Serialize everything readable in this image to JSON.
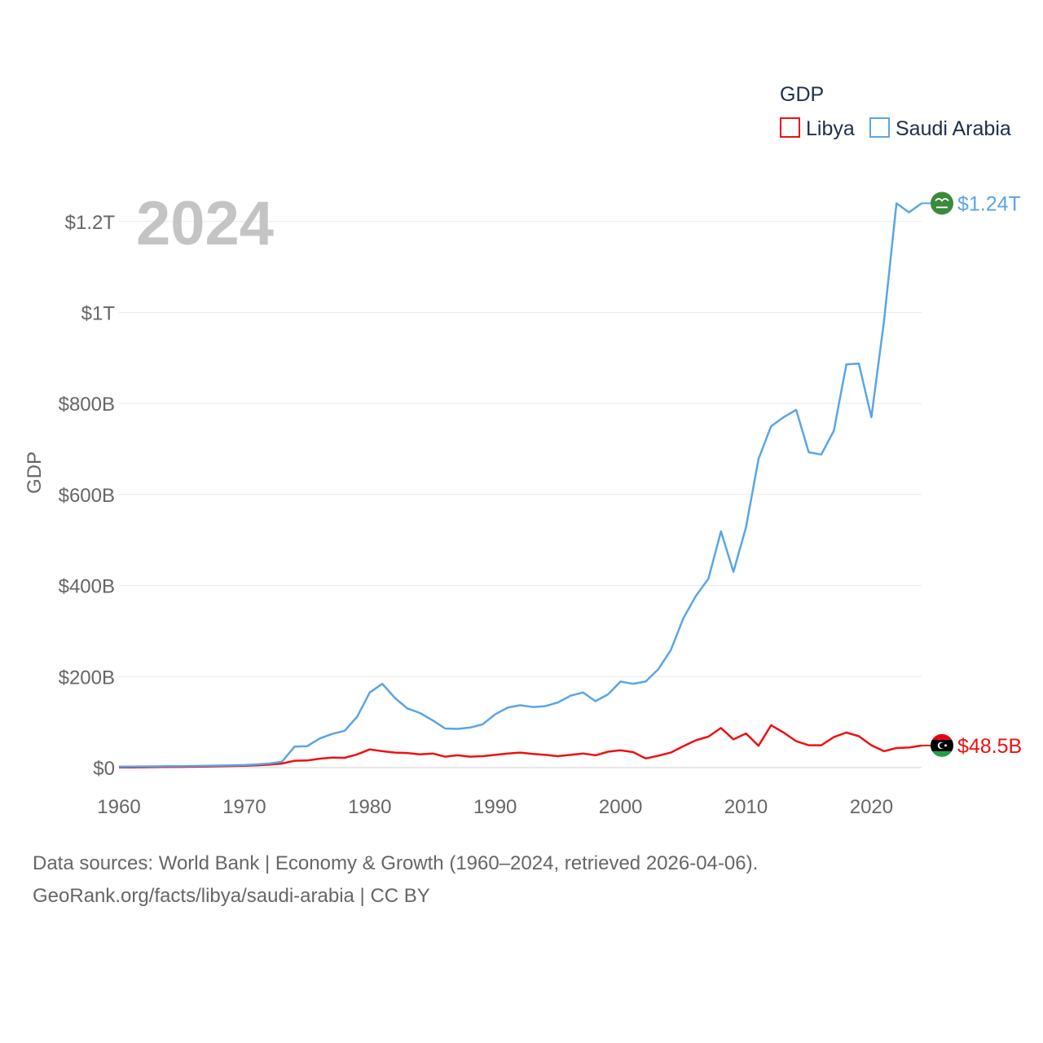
{
  "chart_data": {
    "type": "line",
    "year_label": "2024",
    "ylabel": "GDP",
    "xlabel": "",
    "xlim": [
      1960,
      2024
    ],
    "ylim": [
      0,
      1300
    ],
    "y_unit": "billions USD",
    "x_ticks": [
      {
        "value": 1960,
        "label": "1960"
      },
      {
        "value": 1970,
        "label": "1970"
      },
      {
        "value": 1980,
        "label": "1980"
      },
      {
        "value": 1990,
        "label": "1990"
      },
      {
        "value": 2000,
        "label": "2000"
      },
      {
        "value": 2010,
        "label": "2010"
      },
      {
        "value": 2020,
        "label": "2020"
      }
    ],
    "y_ticks": [
      {
        "value": 0,
        "label": "$0"
      },
      {
        "value": 200,
        "label": "$200B"
      },
      {
        "value": 400,
        "label": "$400B"
      },
      {
        "value": 600,
        "label": "$600B"
      },
      {
        "value": 800,
        "label": "$800B"
      },
      {
        "value": 1000,
        "label": "$1T"
      },
      {
        "value": 1200,
        "label": "$1.2T"
      }
    ],
    "legend": {
      "title": "GDP",
      "placement": "top-right",
      "items": [
        {
          "label": "Libya",
          "color": "#ee1111"
        },
        {
          "label": "Saudi Arabia",
          "color": "#5aa5e6"
        }
      ]
    },
    "series": [
      {
        "name": "Libya",
        "color": "#ee1111",
        "flag_icon": "libya-flag-icon",
        "end_label": "$48.5B",
        "x": [
          1960,
          1961,
          1962,
          1963,
          1964,
          1965,
          1966,
          1967,
          1968,
          1969,
          1970,
          1971,
          1972,
          1973,
          1974,
          1975,
          1976,
          1977,
          1978,
          1979,
          1980,
          1981,
          1982,
          1983,
          1984,
          1985,
          1986,
          1987,
          1988,
          1989,
          1990,
          1991,
          1992,
          1993,
          1994,
          1995,
          1996,
          1997,
          1998,
          1999,
          2000,
          2001,
          2002,
          2003,
          2004,
          2005,
          2006,
          2007,
          2008,
          2009,
          2010,
          2011,
          2012,
          2013,
          2014,
          2015,
          2016,
          2017,
          2018,
          2019,
          2020,
          2021,
          2022,
          2023,
          2024
        ],
        "values": [
          0.5,
          0.6,
          0.8,
          1,
          1.3,
          1.6,
          2,
          2.5,
          3,
          3.5,
          4,
          5,
          6.5,
          9,
          15,
          15.5,
          19.5,
          22,
          21.5,
          29,
          40,
          36,
          33,
          32,
          29,
          31,
          24,
          27,
          24,
          25,
          28,
          31,
          33,
          30,
          28,
          25,
          28,
          31,
          27,
          35,
          38,
          34,
          20,
          26,
          33,
          47,
          60,
          68,
          87,
          62,
          75,
          48,
          93,
          77,
          58,
          49,
          49,
          67,
          77,
          69,
          49,
          36,
          43,
          44,
          48.5
        ]
      },
      {
        "name": "Saudi Arabia",
        "color": "#5aa5e6",
        "flag_icon": "saudi-arabia-flag-icon",
        "end_label": "$1.24T",
        "x": [
          1960,
          1961,
          1962,
          1963,
          1964,
          1965,
          1966,
          1967,
          1968,
          1969,
          1970,
          1971,
          1972,
          1973,
          1974,
          1975,
          1976,
          1977,
          1978,
          1979,
          1980,
          1981,
          1982,
          1983,
          1984,
          1985,
          1986,
          1987,
          1988,
          1989,
          1990,
          1991,
          1992,
          1993,
          1994,
          1995,
          1996,
          1997,
          1998,
          1999,
          2000,
          2001,
          2002,
          2003,
          2004,
          2005,
          2006,
          2007,
          2008,
          2009,
          2010,
          2011,
          2012,
          2013,
          2014,
          2015,
          2016,
          2017,
          2018,
          2019,
          2020,
          2021,
          2022,
          2023,
          2024
        ],
        "values": [
          2,
          2.2,
          2.5,
          2.7,
          3,
          3.3,
          3.6,
          4,
          4.4,
          5,
          5.5,
          7,
          9,
          13,
          46,
          47,
          64,
          74,
          81,
          112,
          165,
          184,
          153,
          130,
          120,
          104,
          86,
          85,
          88,
          95,
          117,
          132,
          137,
          133,
          135,
          143,
          158,
          165,
          146,
          161,
          189,
          184,
          189,
          216,
          258,
          328,
          377,
          415,
          519,
          430,
          528,
          678,
          750,
          770,
          786,
          693,
          688,
          740,
          886,
          888,
          770,
          980,
          1240,
          1220,
          1240
        ]
      }
    ]
  },
  "footer": {
    "line1": "Data sources: World Bank | Economy & Growth (1960–2024, retrieved 2026-04-06).",
    "line2": "GeoRank.org/facts/libya/saudi-arabia | CC BY"
  }
}
